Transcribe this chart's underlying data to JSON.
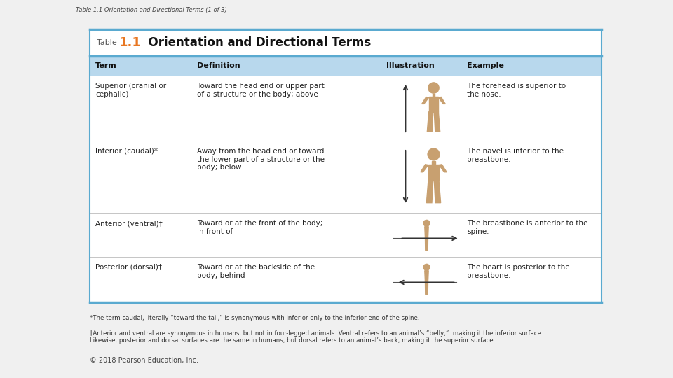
{
  "title_prefix": "Table",
  "title_number": "1.1",
  "title_text": "Orientation and Directional Terms",
  "header_row": [
    "Term",
    "Definition",
    "Illustration",
    "Example"
  ],
  "rows": [
    {
      "term": "Superior (cranial or\ncephalic)",
      "definition": "Toward the head end or upper part\nof a structure or the body; above",
      "example": "The forehead is superior to\nthe nose."
    },
    {
      "term": "Inferior (caudal)*",
      "definition": "Away from the head end or toward\nthe lower part of a structure or the\nbody; below",
      "example": "The navel is inferior to the\nbreastbone."
    },
    {
      "term": "Anterior (ventral)†",
      "definition": "Toward or at the front of the body;\nin front of",
      "example": "The breastbone is anterior to the\nspine."
    },
    {
      "term": "Posterior (dorsal)†",
      "definition": "Toward or at the backside of the\nbody; behind",
      "example": "The heart is posterior to the\nbreastbone."
    }
  ],
  "footnote1": "*The term caudal, literally “toward the tail,” is synonymous with inferior only to the inferior end of the spine.",
  "footnote2": "†Anterior and ventral are synonymous in humans, but not in four-legged animals. Ventral refers to an animal’s “belly,”  making it the inferior surface.\nLikewise, posterior and dorsal surfaces are the same in humans, but dorsal refers to an animal’s back, making it the superior surface.",
  "copyright": "© 2018 Pearson Education, Inc.",
  "slide_title": "Table 1.1 Orientation and Directional Terms (1 of 3)",
  "bg_color": "#f0f0f0",
  "table_bg": "#ffffff",
  "header_row_bg": "#b8d8ed",
  "border_color": "#5aaad0",
  "title_number_color": "#e87722",
  "body_color": "#c8a070"
}
